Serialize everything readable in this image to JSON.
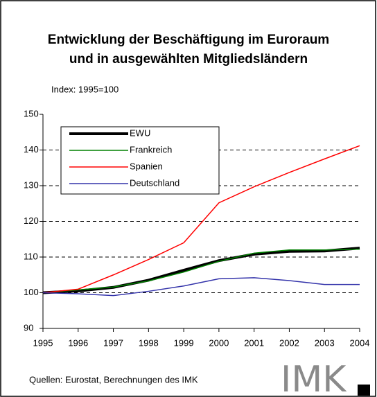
{
  "chart_data": {
    "type": "line",
    "title": [
      "Entwicklung der Beschäftigung im Euroraum",
      "und in ausgewählten Mitgliedsländern"
    ],
    "subtitle": "Index: 1995=100",
    "source": "Quellen: Eurostat, Berechnungen des IMK",
    "logo": "IMK",
    "x": [
      1995,
      1996,
      1997,
      1998,
      1999,
      2000,
      2001,
      2002,
      2003,
      2004
    ],
    "xlim": [
      1995,
      2004
    ],
    "xticks": [
      1995,
      1996,
      1997,
      1998,
      1999,
      2000,
      2001,
      2002,
      2003,
      2004
    ],
    "ylim": [
      90,
      150
    ],
    "yticks": [
      90,
      100,
      110,
      120,
      130,
      140,
      150
    ],
    "grid": true,
    "series": [
      {
        "name": "EWU",
        "color": "#000000",
        "values": [
          100,
          100.5,
          101.5,
          103.5,
          106.3,
          109,
          110.8,
          111.6,
          111.7,
          112.5
        ]
      },
      {
        "name": "Frankreich",
        "color": "#008000",
        "values": [
          100,
          100.8,
          101.6,
          103.3,
          105.8,
          108.8,
          111.1,
          112,
          112,
          112.2
        ]
      },
      {
        "name": "Spanien",
        "color": "#ff0000",
        "values": [
          100,
          101,
          105,
          109.3,
          114,
          125.2,
          129.7,
          133.7,
          137.5,
          141.2
        ]
      },
      {
        "name": "Deutschland",
        "color": "#3333aa",
        "values": [
          100,
          99.7,
          99.2,
          100.4,
          101.9,
          103.9,
          104.2,
          103.4,
          102.3,
          102.3
        ]
      }
    ]
  }
}
